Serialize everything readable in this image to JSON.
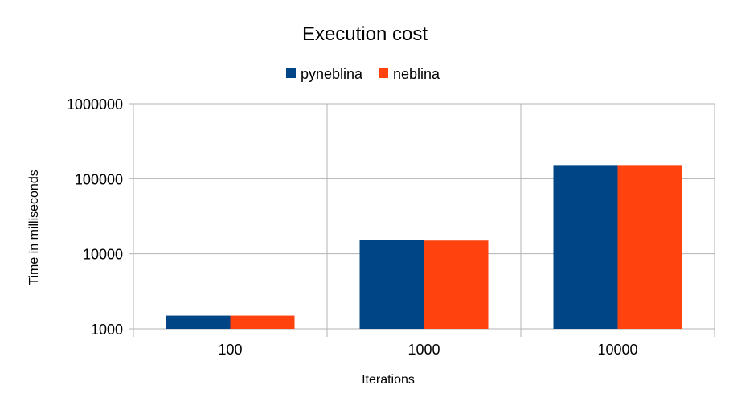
{
  "chart_data": {
    "type": "bar",
    "title": "Execution cost",
    "xlabel": "Iterations",
    "ylabel": "Time in milliseconds",
    "y_scale": "log",
    "ylim": [
      1000,
      1000000
    ],
    "y_ticks": [
      "1000",
      "10000",
      "100000",
      "1000000"
    ],
    "categories": [
      "100",
      "1000",
      "10000"
    ],
    "series": [
      {
        "name": "pyneblina",
        "color": "#004586",
        "values": [
          1500,
          15200,
          152000
        ]
      },
      {
        "name": "neblina",
        "color": "#ff420e",
        "values": [
          1500,
          15000,
          152000
        ]
      }
    ],
    "legend_position": "top",
    "grid": true
  }
}
